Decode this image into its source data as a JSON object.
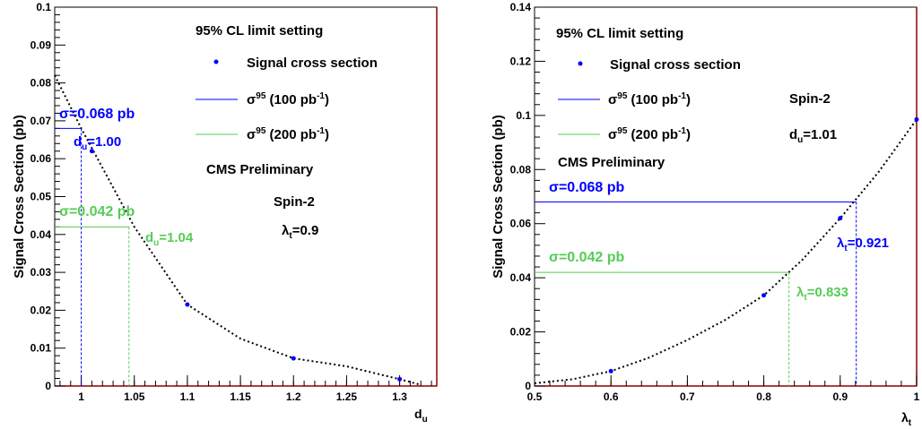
{
  "chart_data": [
    {
      "type": "scatter",
      "ylabel": "Signal Cross Section (pb)",
      "xlabel": "d_u",
      "xlim": [
        0.975,
        1.335
      ],
      "ylim": [
        0,
        0.1
      ],
      "xticks": [
        "1",
        "1.05",
        "1.1",
        "1.15",
        "1.2",
        "1.25",
        "1.3"
      ],
      "yticks": [
        "0",
        "0.01",
        "0.02",
        "0.03",
        "0.04",
        "0.05",
        "0.06",
        "0.07",
        "0.08",
        "0.09",
        "0.1"
      ],
      "series": [
        {
          "name": "Signal cross section",
          "x": [
            1.01,
            1.1,
            1.2,
            1.3
          ],
          "y": [
            0.062,
            0.0215,
            0.0073,
            0.0018
          ],
          "color": "#0000ff"
        }
      ],
      "fit_curve": {
        "x": [
          0.975,
          1.0,
          1.05,
          1.1,
          1.15,
          1.2,
          1.25,
          1.3,
          1.32
        ],
        "y": [
          0.082,
          0.068,
          0.042,
          0.0215,
          0.0125,
          0.0073,
          0.0052,
          0.0018,
          0.0003
        ],
        "color": "#000000"
      },
      "limits": [
        {
          "name": "(100 pb",
          "sigma": 0.068,
          "x": 1.0,
          "color": "#0000ff",
          "sigma_label": "σ=0.068 pb",
          "x_label": "d",
          "x_label_sub": "u",
          "x_label_value": "=1.00"
        },
        {
          "name": "(200 pb",
          "sigma": 0.042,
          "x": 1.045,
          "color": "#55cc55",
          "sigma_label": "σ=0.042 pb",
          "x_label": "d",
          "x_label_sub": "u",
          "x_label_value": "=1.04"
        }
      ],
      "legend": {
        "title": "95% CL limit setting",
        "marker_label": "Signal cross section",
        "line_prefix": "σ",
        "line_sup": "95",
        "line_100": "(100 pb",
        "line_200": "(200 pb",
        "unit_sup": "-1",
        "close": ")"
      },
      "annotations": {
        "cms": "CMS Preliminary",
        "spin": "Spin-2",
        "param": "λ",
        "param_sub": "t",
        "param_value": "=0.9"
      }
    },
    {
      "type": "scatter",
      "ylabel": "Signal Cross Section (pb)",
      "xlabel": "λ_t",
      "xlim": [
        0.5,
        1.0
      ],
      "ylim": [
        0,
        0.14
      ],
      "xticks": [
        "0.5",
        "0.6",
        "0.7",
        "0.8",
        "0.9",
        "1"
      ],
      "yticks": [
        "0",
        "0.02",
        "0.04",
        "0.06",
        "0.08",
        "0.1",
        "0.12",
        "0.14"
      ],
      "series": [
        {
          "name": "Signal cross section",
          "x": [
            0.6,
            0.8,
            0.9,
            1.0
          ],
          "y": [
            0.0055,
            0.0335,
            0.062,
            0.0985
          ],
          "color": "#0000ff"
        }
      ],
      "fit_curve": {
        "x": [
          0.5,
          0.55,
          0.6,
          0.65,
          0.7,
          0.75,
          0.8,
          0.85,
          0.9,
          0.95,
          1.0
        ],
        "y": [
          0.001,
          0.0025,
          0.0055,
          0.0105,
          0.017,
          0.0245,
          0.0335,
          0.0465,
          0.062,
          0.079,
          0.0985
        ],
        "color": "#000000"
      },
      "limits": [
        {
          "name": "(100 pb",
          "sigma": 0.068,
          "x": 0.921,
          "color": "#0000ff",
          "sigma_label": "σ=0.068 pb",
          "x_label": "λ",
          "x_label_sub": "t",
          "x_label_value": "=0.921"
        },
        {
          "name": "(200 pb",
          "sigma": 0.042,
          "x": 0.833,
          "color": "#55cc55",
          "sigma_label": "σ=0.042 pb",
          "x_label": "λ",
          "x_label_sub": "t",
          "x_label_value": "=0.833"
        }
      ],
      "legend": {
        "title": "95% CL limit setting",
        "marker_label": "Signal cross section",
        "line_prefix": "σ",
        "line_sup": "95",
        "line_100": "(100 pb",
        "line_200": "(200 pb",
        "unit_sup": "-1",
        "close": ")"
      },
      "annotations": {
        "cms": "CMS Preliminary",
        "spin": "Spin-2",
        "param": "d",
        "param_sub": "u",
        "param_value": "=1.01"
      }
    }
  ]
}
